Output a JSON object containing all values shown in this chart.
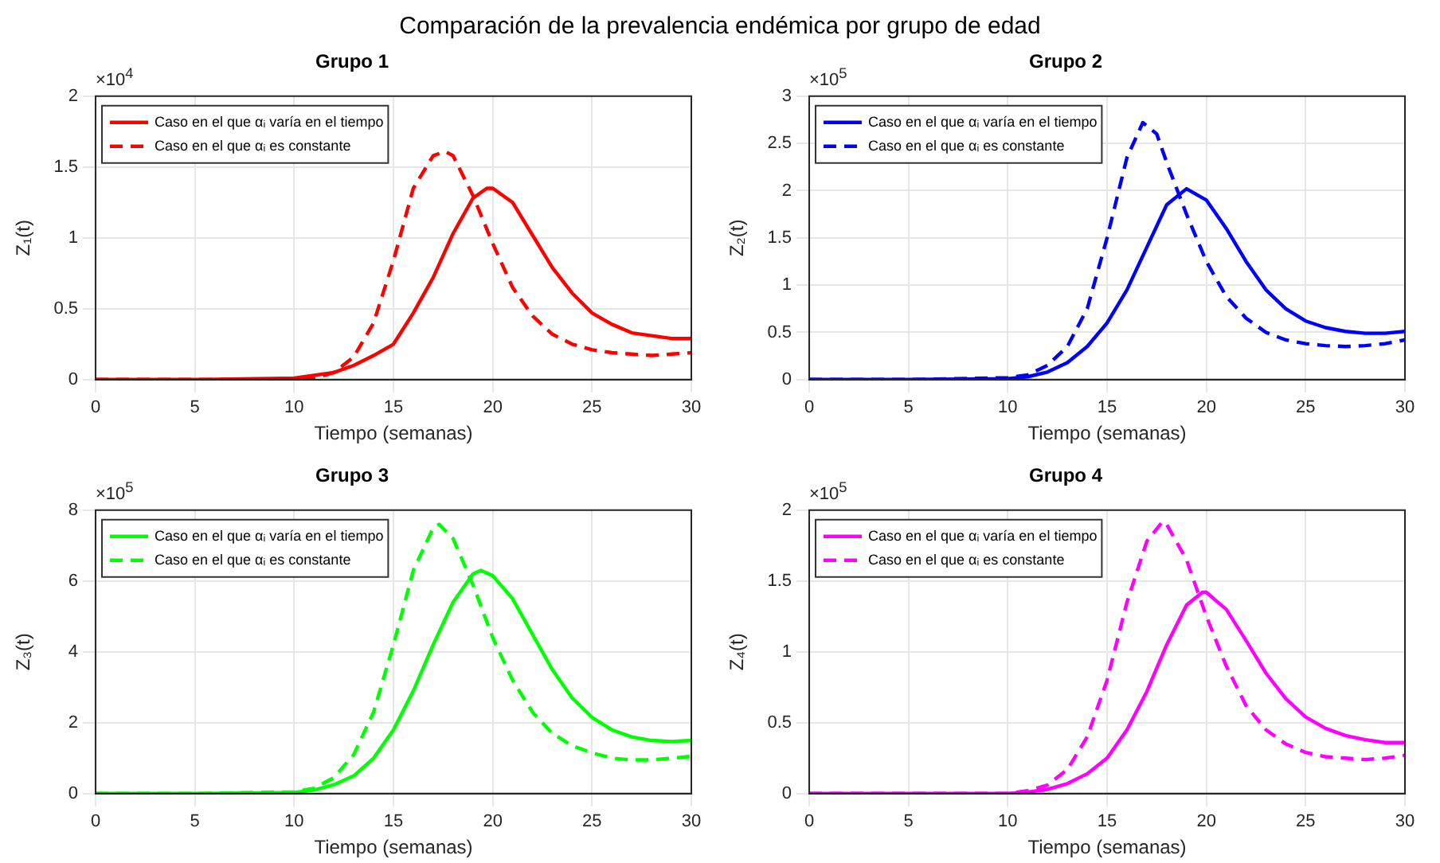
{
  "chart_data": [
    {
      "type": "line",
      "title": "Grupo 1",
      "xlabel": "Tiempo (semanas)",
      "ylabel": "Z₁(t)",
      "annotations": [
        "Comparación de la prevalencia endémica por grupo de edad",
        "×10$^{4}$"
      ],
      "xlim": [
        0,
        30
      ],
      "xticks": [
        0,
        5,
        10,
        15,
        20,
        25,
        30
      ],
      "ylim": [
        0,
        2
      ],
      "yticks": [
        0,
        0.5,
        1,
        1.5,
        2
      ],
      "grid": true,
      "legend": "top left",
      "marker": "none",
      "series": [
        {
          "name": "Caso en el que αᵢ varía en el tiempo",
          "color": "#ff0000",
          "line_style": "solid",
          "x": [
            0,
            5,
            10,
            12,
            13,
            14,
            15,
            16,
            17,
            18,
            19,
            19.7,
            20,
            21,
            22,
            23,
            24,
            25,
            26,
            27,
            28,
            29,
            30
          ],
          "values": [
            0,
            0,
            0.01,
            0.05,
            0.1,
            0.17,
            0.25,
            0.47,
            0.72,
            1.03,
            1.28,
            1.35,
            1.35,
            1.25,
            1.02,
            0.79,
            0.61,
            0.47,
            0.39,
            0.33,
            0.31,
            0.29,
            0.29
          ]
        },
        {
          "name": "Caso en el que αᵢ es constante",
          "color": "#ff0000",
          "line_style": "dashed",
          "x": [
            0,
            5,
            10,
            11,
            12,
            13,
            14,
            15,
            16,
            17,
            17.6,
            18,
            19,
            20,
            21,
            22,
            23,
            24,
            25,
            26,
            27,
            28,
            29,
            30
          ],
          "values": [
            0,
            0,
            0,
            0.01,
            0.05,
            0.16,
            0.4,
            0.84,
            1.35,
            1.58,
            1.61,
            1.58,
            1.3,
            0.96,
            0.65,
            0.45,
            0.32,
            0.25,
            0.21,
            0.19,
            0.18,
            0.17,
            0.18,
            0.19
          ]
        }
      ]
    },
    {
      "type": "line",
      "title": "Grupo 2",
      "xlabel": "Tiempo (semanas)",
      "ylabel": "Z₂(t)",
      "annotations": [
        "×10$^{5}$"
      ],
      "xlim": [
        0,
        30
      ],
      "xticks": [
        0,
        5,
        10,
        15,
        20,
        25,
        30
      ],
      "ylim": [
        0,
        3
      ],
      "yticks": [
        0,
        0.5,
        1,
        1.5,
        2,
        2.5,
        3
      ],
      "grid": true,
      "legend": "top left",
      "marker": "none",
      "series": [
        {
          "name": "Caso en el que αᵢ varía en el tiempo",
          "color": "#0000ff",
          "line_style": "solid",
          "x": [
            0,
            5,
            10,
            11,
            12,
            13,
            14,
            15,
            16,
            17,
            18,
            19,
            20,
            21,
            22,
            23,
            24,
            25,
            26,
            27,
            28,
            29,
            30
          ],
          "values": [
            0,
            0,
            0.01,
            0.03,
            0.08,
            0.18,
            0.35,
            0.6,
            0.95,
            1.4,
            1.85,
            2.02,
            1.9,
            1.6,
            1.25,
            0.95,
            0.75,
            0.62,
            0.55,
            0.51,
            0.49,
            0.49,
            0.51
          ]
        },
        {
          "name": "Caso en el que αᵢ es constante",
          "color": "#0000ff",
          "line_style": "dashed",
          "x": [
            0,
            5,
            10,
            11,
            12,
            13,
            14,
            15,
            16,
            16.8,
            17.5,
            18,
            19,
            20,
            21,
            22,
            23,
            24,
            25,
            26,
            27,
            28,
            29,
            30
          ],
          "values": [
            0,
            0,
            0.02,
            0.05,
            0.15,
            0.35,
            0.75,
            1.5,
            2.35,
            2.72,
            2.6,
            2.3,
            1.75,
            1.25,
            0.88,
            0.65,
            0.5,
            0.42,
            0.38,
            0.36,
            0.35,
            0.36,
            0.38,
            0.42
          ]
        }
      ]
    },
    {
      "type": "line",
      "title": "Grupo 3",
      "xlabel": "Tiempo (semanas)",
      "ylabel": "Z₃(t)",
      "annotations": [
        "×10$^{5}$"
      ],
      "xlim": [
        0,
        30
      ],
      "xticks": [
        0,
        5,
        10,
        15,
        20,
        25,
        30
      ],
      "ylim": [
        0,
        8
      ],
      "yticks": [
        0,
        2,
        4,
        6,
        8
      ],
      "grid": true,
      "legend": "top left",
      "marker": "none",
      "series": [
        {
          "name": "Caso en el que αᵢ varía en el tiempo",
          "color": "#00ff00",
          "line_style": "solid",
          "x": [
            0,
            5,
            10,
            11,
            12,
            13,
            14,
            15,
            16,
            17,
            18,
            19,
            19.4,
            20,
            21,
            22,
            23,
            24,
            25,
            26,
            27,
            28,
            29,
            30
          ],
          "values": [
            0,
            0,
            0.03,
            0.1,
            0.25,
            0.5,
            1,
            1.8,
            2.9,
            4.2,
            5.4,
            6.2,
            6.3,
            6.15,
            5.5,
            4.5,
            3.5,
            2.7,
            2.15,
            1.8,
            1.6,
            1.5,
            1.47,
            1.5
          ]
        },
        {
          "name": "Caso en el que αᵢ es constante",
          "color": "#00ff00",
          "line_style": "dashed",
          "x": [
            0,
            5,
            10,
            11,
            12,
            13,
            14,
            15,
            16,
            17,
            17.3,
            18,
            19,
            20,
            21,
            22,
            23,
            24,
            25,
            26,
            27,
            28,
            29,
            30
          ],
          "values": [
            0,
            0,
            0.05,
            0.15,
            0.45,
            1.1,
            2.3,
            4.2,
            6.3,
            7.5,
            7.6,
            7.2,
            5.9,
            4.4,
            3.2,
            2.3,
            1.7,
            1.35,
            1.15,
            1,
            0.95,
            0.95,
            1,
            1.05
          ]
        }
      ]
    },
    {
      "type": "line",
      "title": "Grupo 4",
      "xlabel": "Tiempo (semanas)",
      "ylabel": "Z₄(t)",
      "annotations": [
        "×10$^{5}$"
      ],
      "xlim": [
        0,
        30
      ],
      "xticks": [
        0,
        5,
        10,
        15,
        20,
        25,
        30
      ],
      "ylim": [
        0,
        2
      ],
      "yticks": [
        0,
        0.5,
        1,
        1.5,
        2
      ],
      "grid": true,
      "legend": "top left",
      "marker": "none",
      "series": [
        {
          "name": "Caso en el que αᵢ varía en el tiempo",
          "color": "#ff00ff",
          "line_style": "solid",
          "x": [
            0,
            5,
            10,
            11,
            12,
            13,
            14,
            15,
            16,
            17,
            18,
            19,
            19.8,
            20,
            21,
            22,
            23,
            24,
            25,
            26,
            27,
            28,
            29,
            30
          ],
          "values": [
            0,
            0,
            0,
            0.01,
            0.03,
            0.07,
            0.14,
            0.25,
            0.45,
            0.72,
            1.05,
            1.33,
            1.42,
            1.42,
            1.3,
            1.08,
            0.85,
            0.67,
            0.54,
            0.46,
            0.41,
            0.38,
            0.36,
            0.36
          ]
        },
        {
          "name": "Caso en el que αᵢ es constante",
          "color": "#ff00ff",
          "line_style": "dashed",
          "x": [
            0,
            5,
            10,
            11,
            12,
            13,
            14,
            15,
            16,
            17,
            17.8,
            18,
            19,
            20,
            21,
            22,
            23,
            24,
            25,
            26,
            27,
            28,
            29,
            30
          ],
          "values": [
            0,
            0,
            0,
            0.02,
            0.06,
            0.17,
            0.4,
            0.8,
            1.35,
            1.78,
            1.92,
            1.9,
            1.65,
            1.25,
            0.9,
            0.62,
            0.45,
            0.35,
            0.29,
            0.26,
            0.25,
            0.24,
            0.25,
            0.27
          ]
        }
      ]
    }
  ]
}
